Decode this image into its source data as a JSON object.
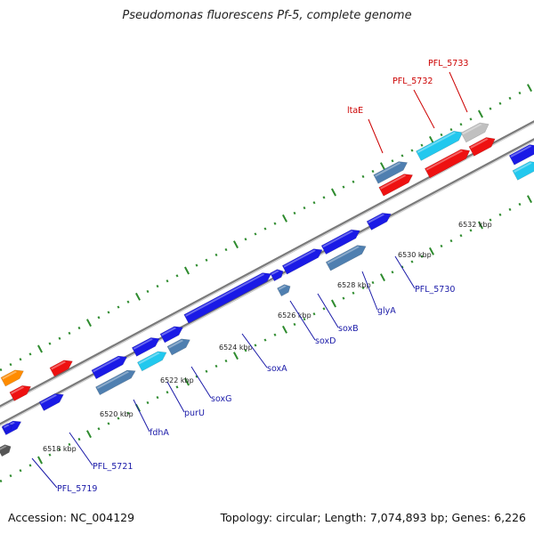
{
  "title": "Pseudomonas fluorescens Pf-5, complete genome",
  "footer": {
    "accession": "Accession: NC_004129",
    "topology": "Topology: circular; Length: 7,074,893 bp; Genes: 6,226"
  },
  "colors": {
    "background": "#ffffff",
    "backbone": "#8a8a8a",
    "tick_mark": "#2e8b2e",
    "label_blue": "#1a1aa8",
    "label_red": "#cc0000",
    "feature_blue": "#1a1ae6",
    "feature_steel": "#4f7fb0",
    "feature_cyan": "#22c8ee",
    "feature_red": "#ee1111",
    "feature_grey": "#c0c0c0",
    "feature_orange": "#ff8c00",
    "feature_dark": "#555555"
  },
  "scale_labels": [
    {
      "text": "6518 kbp"
    },
    {
      "text": "6520 kbp"
    },
    {
      "text": "6522 kbp"
    },
    {
      "text": "6524 kbp"
    },
    {
      "text": "6526 kbp"
    },
    {
      "text": "6528 kbp"
    },
    {
      "text": "6530 kbp"
    },
    {
      "text": "6532 kbp"
    }
  ],
  "gene_labels": [
    {
      "text": "PFL_5719",
      "color": "blue"
    },
    {
      "text": "PFL_5721",
      "color": "blue"
    },
    {
      "text": "fdhA",
      "color": "blue"
    },
    {
      "text": "purU",
      "color": "blue"
    },
    {
      "text": "soxG",
      "color": "blue"
    },
    {
      "text": "soxA",
      "color": "blue"
    },
    {
      "text": "soxD",
      "color": "blue"
    },
    {
      "text": "soxB",
      "color": "blue"
    },
    {
      "text": "glyA",
      "color": "blue"
    },
    {
      "text": "PFL_5730",
      "color": "blue"
    },
    {
      "text": "ltaE",
      "color": "red"
    },
    {
      "text": "PFL_5732",
      "color": "red"
    },
    {
      "text": "PFL_5733",
      "color": "red"
    }
  ],
  "features": [
    {
      "color": "orange",
      "direction": "forward"
    },
    {
      "color": "red",
      "direction": "forward"
    },
    {
      "color": "red",
      "direction": "forward"
    },
    {
      "color": "blue",
      "direction": "forward"
    },
    {
      "color": "blue",
      "direction": "forward"
    },
    {
      "color": "blue",
      "direction": "forward"
    },
    {
      "color": "blue",
      "direction": "forward"
    },
    {
      "color": "steel",
      "direction": "forward"
    },
    {
      "color": "cyan",
      "direction": "forward"
    },
    {
      "color": "steel",
      "direction": "forward"
    },
    {
      "color": "blue",
      "direction": "forward"
    },
    {
      "color": "blue",
      "direction": "forward"
    },
    {
      "color": "blue",
      "direction": "forward"
    },
    {
      "color": "steel",
      "direction": "forward"
    },
    {
      "color": "blue",
      "direction": "forward"
    },
    {
      "color": "blue",
      "direction": "forward"
    },
    {
      "color": "steel",
      "direction": "forward"
    },
    {
      "color": "blue",
      "direction": "forward"
    },
    {
      "color": "steel",
      "direction": "forward"
    },
    {
      "color": "red",
      "direction": "forward"
    },
    {
      "color": "cyan",
      "direction": "forward"
    },
    {
      "color": "grey",
      "direction": "forward"
    },
    {
      "color": "red",
      "direction": "forward"
    },
    {
      "color": "red",
      "direction": "forward"
    },
    {
      "color": "blue",
      "direction": "forward"
    },
    {
      "color": "cyan",
      "direction": "forward"
    },
    {
      "color": "dark",
      "direction": "forward"
    },
    {
      "color": "blue",
      "direction": "forward"
    }
  ]
}
